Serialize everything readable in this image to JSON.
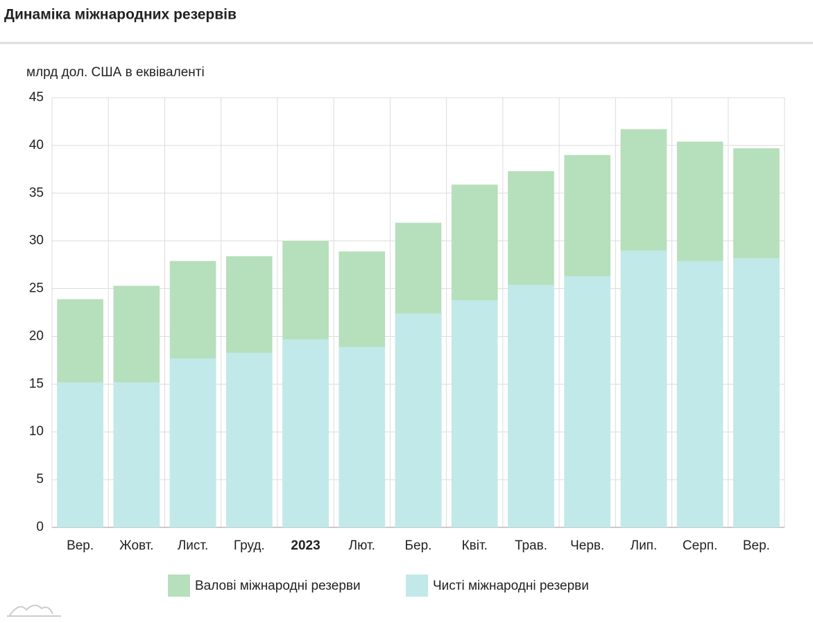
{
  "chart_data": {
    "type": "bar",
    "title": "Динаміка міжнародних резервів",
    "y_label": "млрд дол. США в еквіваленті",
    "categories": [
      "Вер.",
      "Жовт.",
      "Лист.",
      "Груд.",
      "2023",
      "Лют.",
      "Бер.",
      "Квіт.",
      "Трав.",
      "Черв.",
      "Лип.",
      "Серп.",
      "Вер."
    ],
    "series": [
      {
        "name": "Валові міжнародні резерви",
        "color": "#b6dfbb",
        "values": [
          23.9,
          25.3,
          27.9,
          28.4,
          30.0,
          28.9,
          31.9,
          35.9,
          37.3,
          39.0,
          41.7,
          40.4,
          39.7
        ]
      },
      {
        "name": "Чисті міжнародні резерви",
        "color": "#c2e9e9",
        "values": [
          15.2,
          15.2,
          17.7,
          18.3,
          19.7,
          18.9,
          22.4,
          23.8,
          25.4,
          26.3,
          29.0,
          27.9,
          28.2
        ]
      }
    ],
    "ylim": [
      0,
      45
    ],
    "yticks": [
      0,
      5,
      10,
      15,
      20,
      25,
      30,
      35,
      40,
      45
    ],
    "grid": true,
    "legend": "bottom"
  }
}
